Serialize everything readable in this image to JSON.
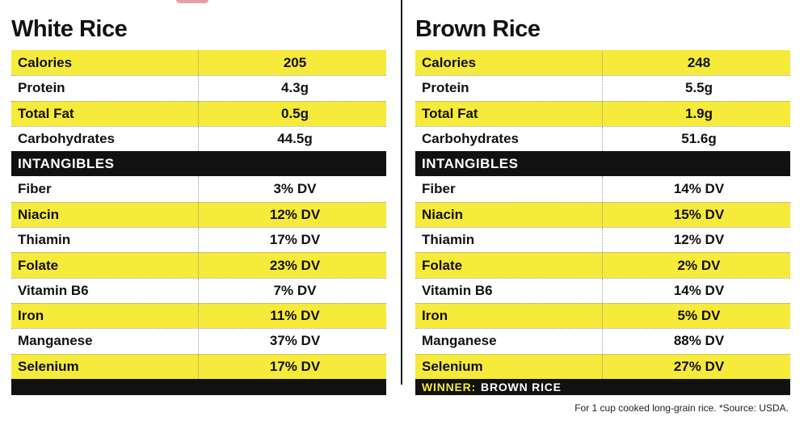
{
  "colors": {
    "highlight": "#f6ea3a",
    "section_bg": "#111111",
    "text": "#111111"
  },
  "left": {
    "title": "White Rice",
    "section_label": "INTANGIBLES",
    "top_rows": [
      {
        "label": "Calories",
        "value": "205"
      },
      {
        "label": "Protein",
        "value": "4.3g"
      },
      {
        "label": "Total Fat",
        "value": "0.5g"
      },
      {
        "label": "Carbohydrates",
        "value": "44.5g"
      }
    ],
    "intangible_rows": [
      {
        "label": "Fiber",
        "value": "3% DV"
      },
      {
        "label": "Niacin",
        "value": "12% DV"
      },
      {
        "label": "Thiamin",
        "value": "17% DV"
      },
      {
        "label": "Folate",
        "value": "23% DV"
      },
      {
        "label": "Vitamin B6",
        "value": "7% DV"
      },
      {
        "label": "Iron",
        "value": "11% DV"
      },
      {
        "label": "Manganese",
        "value": "37% DV"
      },
      {
        "label": "Selenium",
        "value": "17% DV"
      }
    ]
  },
  "right": {
    "title": "Brown Rice",
    "section_label": "INTANGIBLES",
    "top_rows": [
      {
        "label": "Calories",
        "value": "248"
      },
      {
        "label": "Protein",
        "value": "5.5g"
      },
      {
        "label": "Total Fat",
        "value": "1.9g"
      },
      {
        "label": "Carbohydrates",
        "value": "51.6g"
      }
    ],
    "intangible_rows": [
      {
        "label": "Fiber",
        "value": "14% DV"
      },
      {
        "label": "Niacin",
        "value": "15% DV"
      },
      {
        "label": "Thiamin",
        "value": "12% DV"
      },
      {
        "label": "Folate",
        "value": "2% DV"
      },
      {
        "label": "Vitamin B6",
        "value": "14% DV"
      },
      {
        "label": "Iron",
        "value": "5% DV"
      },
      {
        "label": "Manganese",
        "value": "88% DV"
      },
      {
        "label": "Selenium",
        "value": "27% DV"
      }
    ],
    "winner_key": "WINNER:",
    "winner_value": "BROWN RICE"
  },
  "footnote": "For 1 cup cooked long-grain rice. *Source: USDA."
}
